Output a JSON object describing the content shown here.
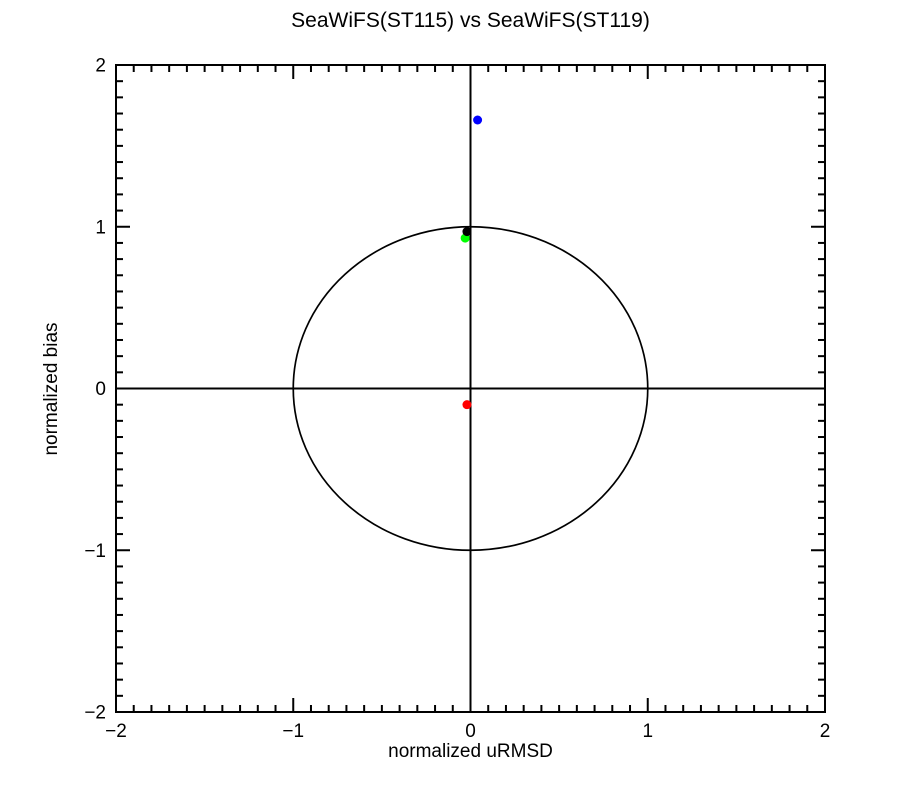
{
  "chart_data": {
    "type": "scatter",
    "title": "SeaWiFS(ST115) vs SeaWiFS(ST119)",
    "xlabel": "normalized uRMSD",
    "ylabel": "normalized bias",
    "xlim": [
      -2,
      2
    ],
    "ylim": [
      -2,
      2
    ],
    "xticks": [
      -2,
      -1,
      0,
      1,
      2
    ],
    "yticks": [
      -2,
      -1,
      0,
      1,
      2
    ],
    "minor_tick_interval": 0.1,
    "grid": false,
    "legend": "none",
    "frame_color": "#000000",
    "background_color": "#ffffff",
    "reference": {
      "unit_circle_radius": 1,
      "crosshair_x": 0,
      "crosshair_y": 0,
      "color": "#000000"
    },
    "series": [
      {
        "name": "blue",
        "color": "#0000ff",
        "points": [
          [
            0.04,
            1.66
          ]
        ]
      },
      {
        "name": "green",
        "color": "#00ff00",
        "points": [
          [
            -0.03,
            0.93
          ]
        ]
      },
      {
        "name": "black",
        "color": "#000000",
        "points": [
          [
            -0.02,
            0.97
          ]
        ]
      },
      {
        "name": "red",
        "color": "#ff0000",
        "points": [
          [
            -0.02,
            -0.1
          ]
        ]
      }
    ]
  }
}
